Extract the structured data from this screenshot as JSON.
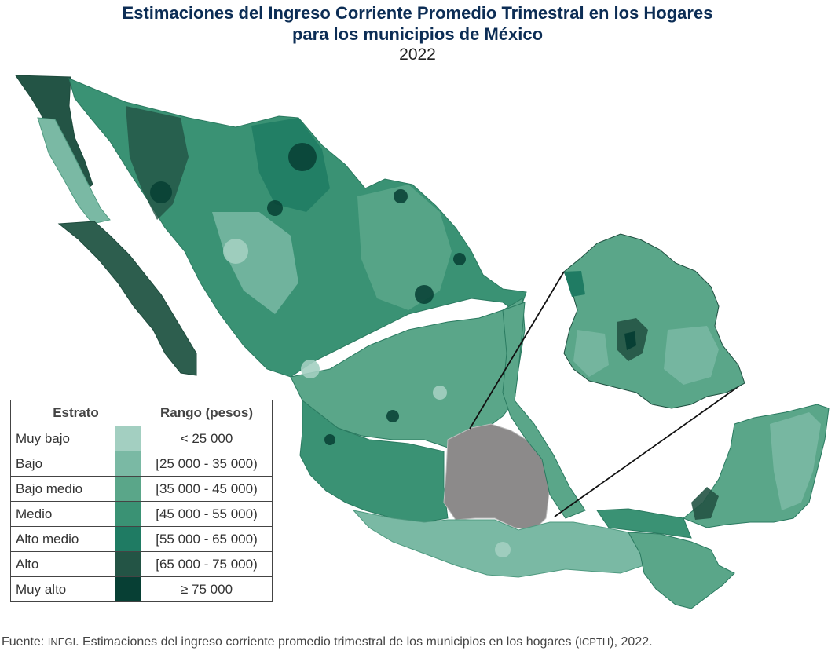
{
  "title_line1": "Estimaciones del Ingreso Corriente Promedio Trimestral en los Hogares",
  "title_line2": "para los municipios de México",
  "year": "2022",
  "legend": {
    "header_strata": "Estrato",
    "header_range": "Rango (pesos)",
    "rows": [
      {
        "label": "Muy bajo",
        "range": "< 25 000",
        "color": "#a3cfc1"
      },
      {
        "label": "Bajo",
        "range": "[25 000 - 35 000)",
        "color": "#7ab9a4"
      },
      {
        "label": "Bajo medio",
        "range": "[35 000 - 45 000)",
        "color": "#5aa689"
      },
      {
        "label": "Medio",
        "range": "[45 000 - 55 000)",
        "color": "#3a9274"
      },
      {
        "label": "Alto medio",
        "range": "[55 000 - 65 000)",
        "color": "#1f7b63"
      },
      {
        "label": "Alto",
        "range": "[65 000 - 75 000)",
        "color": "#235445"
      },
      {
        "label": "Muy alto",
        "range": "≥ 75 000",
        "color": "#073f34"
      }
    ]
  },
  "source": {
    "prefix": "Fuente: ",
    "org": "INEGI",
    "text": ". Estimaciones del ingreso corriente promedio trimestral de los municipios en los hogares (",
    "abbr": "ICPTH",
    "suffix": "), 2022."
  },
  "map": {
    "highlight_color": "#8c8a8a",
    "inset_region": "Centro de México (zona ampliada)"
  }
}
